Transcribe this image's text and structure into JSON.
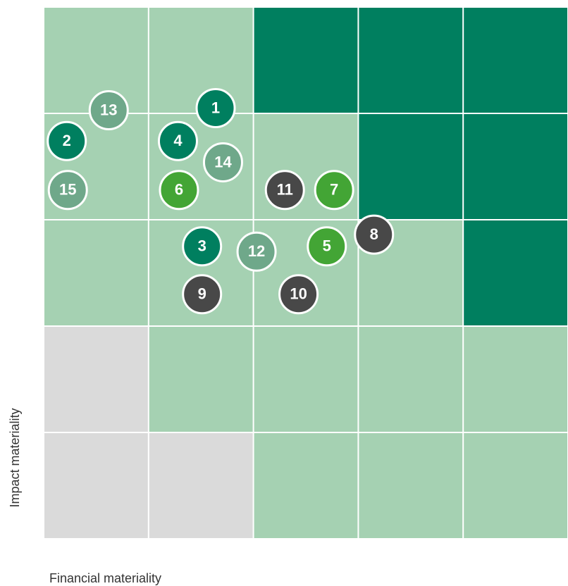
{
  "chart_data": {
    "type": "scatter",
    "xlabel": "Financial materiality",
    "ylabel": "Impact materiality",
    "xlim": [
      0,
      5
    ],
    "ylim": [
      0,
      5
    ],
    "zones": [
      [
        "#dadada",
        "#dadada",
        "#a5d1b2",
        "#a5d1b2",
        "#a5d1b2"
      ],
      [
        "#dadada",
        "#a5d1b2",
        "#a5d1b2",
        "#a5d1b2",
        "#a5d1b2"
      ],
      [
        "#a5d1b2",
        "#a5d1b2",
        "#a5d1b2",
        "#a5d1b2",
        "#007f5f"
      ],
      [
        "#a5d1b2",
        "#a5d1b2",
        "#a5d1b2",
        "#007f5f",
        "#007f5f"
      ],
      [
        "#a5d1b2",
        "#a5d1b2",
        "#007f5f",
        "#007f5f",
        "#007f5f"
      ]
    ],
    "labels": [
      "1",
      "2",
      "3",
      "4",
      "5",
      "6",
      "7",
      "8",
      "9",
      "10",
      "11",
      "12",
      "13",
      "14",
      "15"
    ],
    "x": [
      1.64,
      0.22,
      1.51,
      1.28,
      2.7,
      1.29,
      2.77,
      3.15,
      1.51,
      2.43,
      2.3,
      2.03,
      0.62,
      1.71,
      0.23
    ],
    "y": [
      4.05,
      3.74,
      2.75,
      3.74,
      2.75,
      3.28,
      3.28,
      2.86,
      2.3,
      2.3,
      3.28,
      2.7,
      4.03,
      3.54,
      3.28
    ],
    "colors": [
      "#007f5f",
      "#007f5f",
      "#007f5f",
      "#007f5f",
      "#43a535",
      "#43a535",
      "#43a535",
      "#484848",
      "#484848",
      "#484848",
      "#484848",
      "#6fa88a",
      "#6fa88a",
      "#6fa88a",
      "#6fa88a"
    ]
  }
}
